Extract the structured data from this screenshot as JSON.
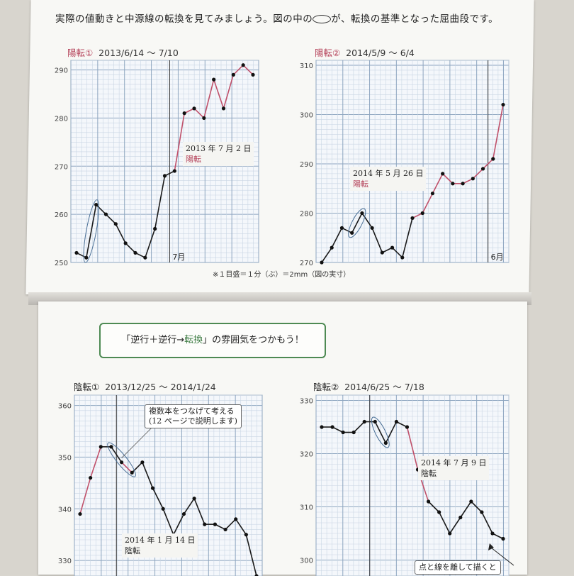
{
  "intro": {
    "text_before": "実際の値動きと中源線の転換を見てみましょう。図の中の",
    "text_after": "が、転換の基準となった屈曲段です。"
  },
  "note": "※１目盛＝１分（ぶ）＝2mm（図の実寸）",
  "callout": {
    "before": "「逆行＋逆行→",
    "highlight": "転換",
    "after": "」の雰囲気をつかもう！"
  },
  "chart_data": [
    {
      "type": "line",
      "id": "yoten1",
      "tag": "陽転①",
      "title": "2013/6/14 ～ 7/10",
      "ylim": [
        250,
        292
      ],
      "yticks": [
        250,
        260,
        270,
        280,
        290
      ],
      "values": [
        252,
        251,
        262,
        260,
        258,
        254,
        252,
        251,
        257,
        268,
        269,
        281,
        282,
        280,
        288,
        282,
        289,
        291,
        289
      ],
      "red_segments": [
        [
          10,
          18
        ]
      ],
      "circled": [
        1,
        2
      ],
      "month_divider_index": 9.5,
      "month_label": "7月",
      "annotation": {
        "date": "2013 年 7 月 2 日",
        "label": "陽転"
      }
    },
    {
      "type": "line",
      "id": "yoten2",
      "tag": "陽転②",
      "title": "2014/5/9 ～ 6/4",
      "ylim": [
        270,
        311
      ],
      "yticks": [
        270,
        280,
        290,
        300,
        310
      ],
      "values": [
        270,
        273,
        277,
        276,
        280,
        277,
        272,
        273,
        271,
        279,
        280,
        284,
        288,
        286,
        286,
        287,
        289,
        291,
        302
      ],
      "red_segments": [
        [
          9,
          13
        ],
        [
          13,
          18
        ]
      ],
      "circled": [
        3,
        4
      ],
      "month_divider_index": 16.5,
      "month_label": "6月",
      "annotation": {
        "date": "2014 年 5 月 26 日",
        "label": "陽転"
      }
    },
    {
      "type": "line",
      "id": "inten1",
      "tag": "陰転①",
      "title": "2013/12/25 ～ 2014/1/24",
      "ylim": [
        327,
        362
      ],
      "yticks": [
        330,
        340,
        350,
        360
      ],
      "values": [
        339,
        346,
        352,
        352,
        349,
        347,
        349,
        344,
        340,
        335,
        339,
        342,
        337,
        337,
        336,
        338,
        335,
        327
      ],
      "red_segments": [
        [
          0,
          2
        ],
        [
          4,
          5
        ]
      ],
      "circled": [
        3,
        5
      ],
      "month_divider_index": 3.5,
      "annotation": {
        "date": "2014 年 1 月 14 日",
        "label": "陰転"
      },
      "box_note": {
        "line1": "複数本をつなげて考える",
        "line2": "(12 ページで説明します)"
      }
    },
    {
      "type": "line",
      "id": "inten2",
      "tag": "陰転②",
      "title": "2014/6/25 ～ 7/18",
      "ylim": [
        297,
        331
      ],
      "yticks": [
        300,
        310,
        320,
        330
      ],
      "values": [
        325,
        325,
        324,
        324,
        326,
        326,
        322,
        326,
        325,
        317,
        311,
        309,
        305,
        308,
        311,
        309,
        305,
        304
      ],
      "red_segments": [
        [
          8,
          10
        ]
      ],
      "circled": [
        5,
        6
      ],
      "month_divider_index": 4.5,
      "annotation": {
        "date": "2014 年 7 月 9 日",
        "label": "陰転"
      },
      "arrow_note": "点と線を離して描くと"
    }
  ]
}
